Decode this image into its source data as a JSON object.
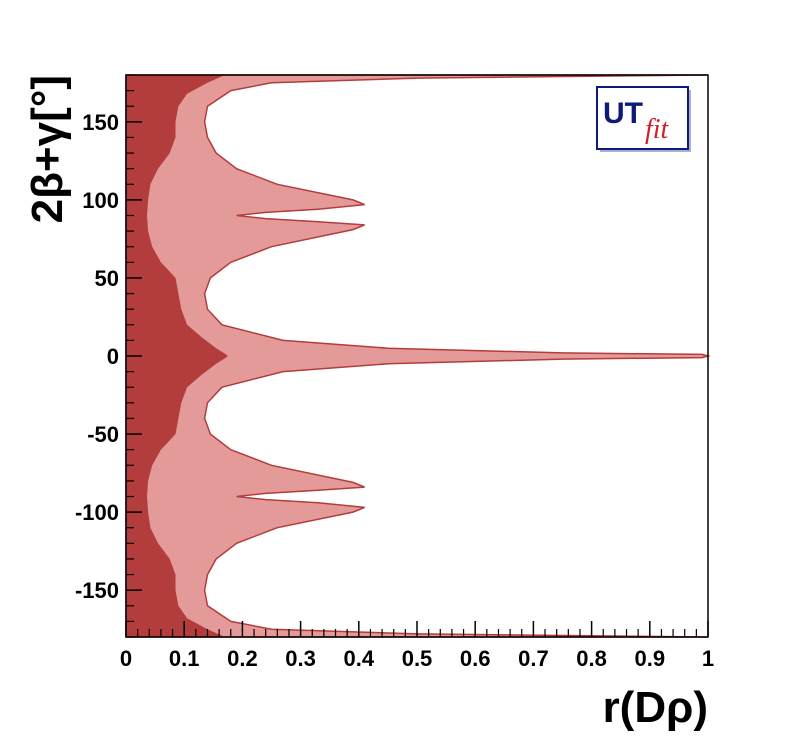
{
  "chart_data": {
    "type": "area",
    "xlabel": "r(Dρ)",
    "ylabel": "2β+γ[°]",
    "xlim": [
      0,
      1
    ],
    "ylim": [
      -180,
      180
    ],
    "x_ticks": [
      0,
      0.1,
      0.2,
      0.3,
      0.4,
      0.5,
      0.6,
      0.7,
      0.8,
      0.9,
      1
    ],
    "x_tick_labels": [
      "0",
      "0.1",
      "0.2",
      "0.3",
      "0.4",
      "0.5",
      "0.6",
      "0.7",
      "0.8",
      "0.9",
      "1"
    ],
    "y_ticks": [
      -150,
      -100,
      -50,
      0,
      50,
      100,
      150
    ],
    "y_tick_labels": [
      "-150",
      "-100",
      "-50",
      "0",
      "50",
      "100",
      "150"
    ],
    "grid": false,
    "logo": "UTfit",
    "series": [
      {
        "role": "outer-region",
        "color": "#e59a9a",
        "boundary": [
          {
            "y": 180,
            "x": 1.0
          },
          {
            "y": 178,
            "x": 0.5
          },
          {
            "y": 175,
            "x": 0.25
          },
          {
            "y": 170,
            "x": 0.18
          },
          {
            "y": 160,
            "x": 0.14
          },
          {
            "y": 150,
            "x": 0.135
          },
          {
            "y": 140,
            "x": 0.14
          },
          {
            "y": 130,
            "x": 0.155
          },
          {
            "y": 120,
            "x": 0.19
          },
          {
            "y": 110,
            "x": 0.26
          },
          {
            "y": 100,
            "x": 0.39
          },
          {
            "y": 97,
            "x": 0.41
          },
          {
            "y": 94,
            "x": 0.33
          },
          {
            "y": 92,
            "x": 0.24
          },
          {
            "y": 90,
            "x": 0.19
          },
          {
            "y": 88,
            "x": 0.24
          },
          {
            "y": 86,
            "x": 0.33
          },
          {
            "y": 84,
            "x": 0.41
          },
          {
            "y": 81,
            "x": 0.39
          },
          {
            "y": 70,
            "x": 0.25
          },
          {
            "y": 60,
            "x": 0.18
          },
          {
            "y": 50,
            "x": 0.145
          },
          {
            "y": 40,
            "x": 0.135
          },
          {
            "y": 30,
            "x": 0.14
          },
          {
            "y": 20,
            "x": 0.165
          },
          {
            "y": 10,
            "x": 0.27
          },
          {
            "y": 5,
            "x": 0.45
          },
          {
            "y": 2,
            "x": 0.75
          },
          {
            "y": 1,
            "x": 0.99
          },
          {
            "y": 0,
            "x": 1.0
          },
          {
            "y": -1,
            "x": 0.99
          },
          {
            "y": -2,
            "x": 0.75
          },
          {
            "y": -5,
            "x": 0.45
          },
          {
            "y": -10,
            "x": 0.27
          },
          {
            "y": -20,
            "x": 0.165
          },
          {
            "y": -30,
            "x": 0.14
          },
          {
            "y": -40,
            "x": 0.135
          },
          {
            "y": -50,
            "x": 0.145
          },
          {
            "y": -60,
            "x": 0.18
          },
          {
            "y": -70,
            "x": 0.25
          },
          {
            "y": -81,
            "x": 0.39
          },
          {
            "y": -84,
            "x": 0.41
          },
          {
            "y": -86,
            "x": 0.33
          },
          {
            "y": -88,
            "x": 0.24
          },
          {
            "y": -90,
            "x": 0.19
          },
          {
            "y": -92,
            "x": 0.24
          },
          {
            "y": -94,
            "x": 0.33
          },
          {
            "y": -97,
            "x": 0.41
          },
          {
            "y": -100,
            "x": 0.39
          },
          {
            "y": -110,
            "x": 0.26
          },
          {
            "y": -120,
            "x": 0.19
          },
          {
            "y": -130,
            "x": 0.155
          },
          {
            "y": -140,
            "x": 0.14
          },
          {
            "y": -150,
            "x": 0.135
          },
          {
            "y": -160,
            "x": 0.14
          },
          {
            "y": -170,
            "x": 0.18
          },
          {
            "y": -175,
            "x": 0.25
          },
          {
            "y": -178,
            "x": 0.5
          },
          {
            "y": -180,
            "x": 1.0
          }
        ]
      },
      {
        "role": "inner-region",
        "color": "#b33c3c",
        "boundary": [
          {
            "y": 180,
            "x": 0.17
          },
          {
            "y": 175,
            "x": 0.14
          },
          {
            "y": 168,
            "x": 0.105
          },
          {
            "y": 160,
            "x": 0.09
          },
          {
            "y": 150,
            "x": 0.085
          },
          {
            "y": 140,
            "x": 0.085
          },
          {
            "y": 130,
            "x": 0.075
          },
          {
            "y": 120,
            "x": 0.055
          },
          {
            "y": 110,
            "x": 0.042
          },
          {
            "y": 100,
            "x": 0.038
          },
          {
            "y": 90,
            "x": 0.036
          },
          {
            "y": 80,
            "x": 0.038
          },
          {
            "y": 70,
            "x": 0.045
          },
          {
            "y": 60,
            "x": 0.06
          },
          {
            "y": 50,
            "x": 0.085
          },
          {
            "y": 40,
            "x": 0.09
          },
          {
            "y": 30,
            "x": 0.095
          },
          {
            "y": 20,
            "x": 0.105
          },
          {
            "y": 12,
            "x": 0.13
          },
          {
            "y": 5,
            "x": 0.155
          },
          {
            "y": 1,
            "x": 0.172
          },
          {
            "y": 0,
            "x": 0.175
          },
          {
            "y": -1,
            "x": 0.172
          },
          {
            "y": -5,
            "x": 0.155
          },
          {
            "y": -12,
            "x": 0.13
          },
          {
            "y": -20,
            "x": 0.105
          },
          {
            "y": -30,
            "x": 0.095
          },
          {
            "y": -40,
            "x": 0.09
          },
          {
            "y": -50,
            "x": 0.085
          },
          {
            "y": -60,
            "x": 0.06
          },
          {
            "y": -70,
            "x": 0.045
          },
          {
            "y": -80,
            "x": 0.038
          },
          {
            "y": -90,
            "x": 0.036
          },
          {
            "y": -100,
            "x": 0.038
          },
          {
            "y": -110,
            "x": 0.042
          },
          {
            "y": -120,
            "x": 0.055
          },
          {
            "y": -130,
            "x": 0.075
          },
          {
            "y": -140,
            "x": 0.085
          },
          {
            "y": -150,
            "x": 0.085
          },
          {
            "y": -160,
            "x": 0.09
          },
          {
            "y": -168,
            "x": 0.105
          },
          {
            "y": -175,
            "x": 0.14
          },
          {
            "y": -180,
            "x": 0.17
          }
        ]
      }
    ]
  }
}
